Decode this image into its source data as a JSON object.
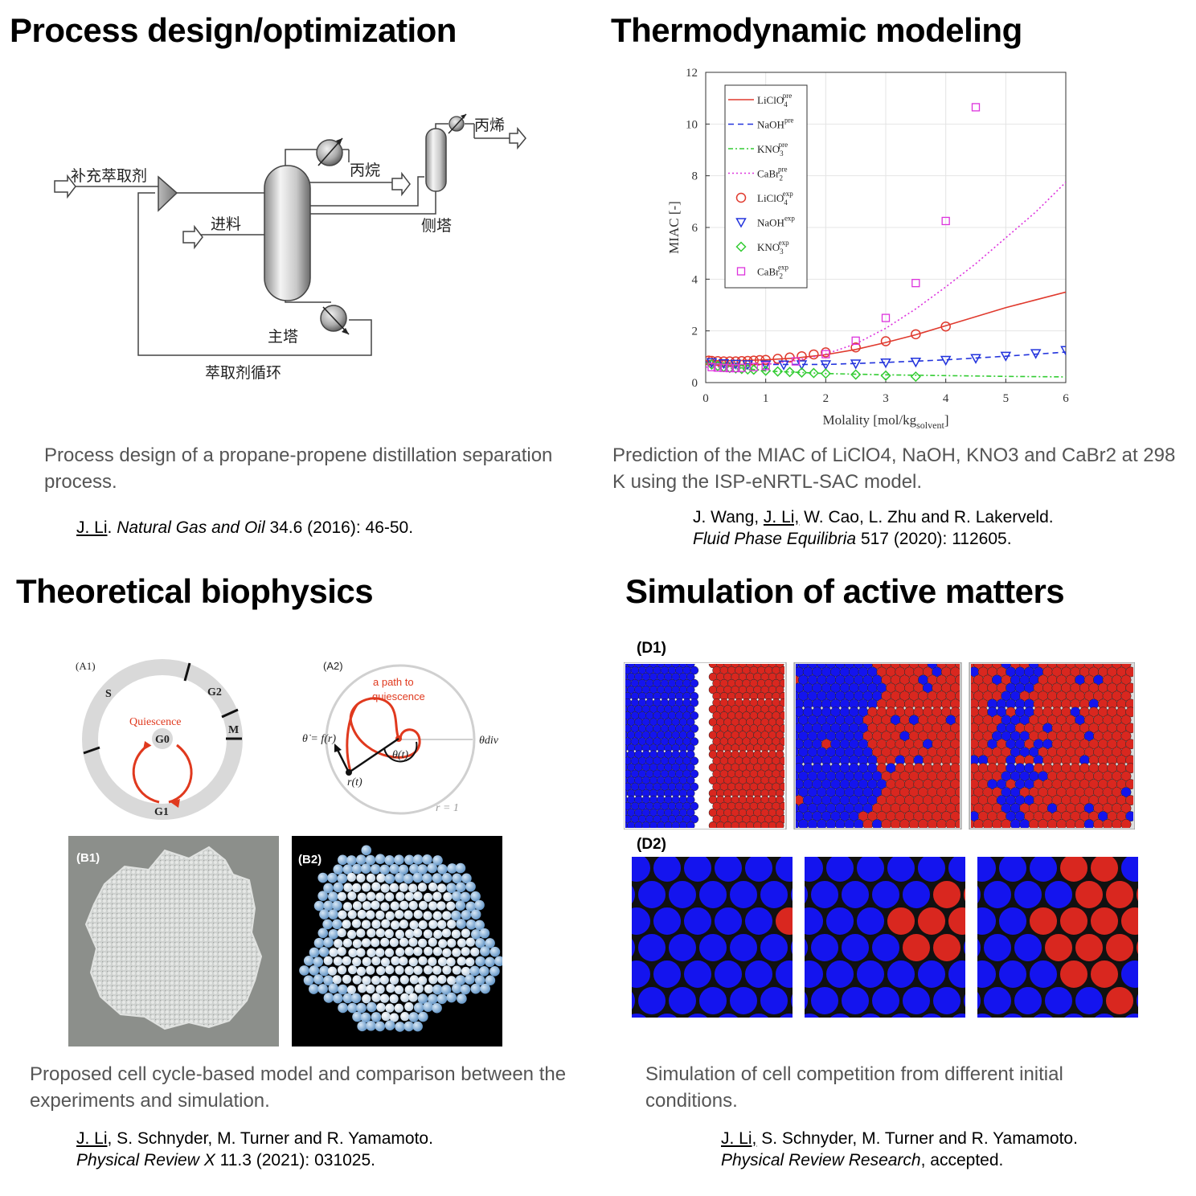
{
  "sections": {
    "process": {
      "title": "Process design/optimization",
      "caption": "Process design of a propane-propene distillation separation process.",
      "ref_author": "J. Li",
      "ref_journal": "Natural Gas and Oil",
      "ref_rest": " 34.6 (2016): 46-50.",
      "diagram": {
        "makeup_solvent": "补充萃取剂",
        "feed": "进料",
        "main_column": "主塔",
        "propane": "丙烷",
        "side_column": "侧塔",
        "propene": "丙烯",
        "solvent_recycle": "萃取剂循环"
      }
    },
    "thermo": {
      "title": "Thermodynamic modeling",
      "caption": "Prediction of the MIAC of LiClO4, NaOH, KNO3 and CaBr2 at 298 K using the ISP-eNRTL-SAC model.",
      "ref_line1_a": "J. Wang, ",
      "ref_line1_author": "J. Li,",
      "ref_line1_b": " W. Cao, L. Zhu and R. Lakerveld.",
      "ref_journal": "Fluid Phase Equilibria",
      "ref_rest": " 517 (2020): 112605."
    },
    "biophys": {
      "title": "Theoretical biophysics",
      "caption": "Proposed cell cycle-based model and comparison between the experiments and simulation.",
      "ref_author": "J. Li",
      "ref_line1_rest": ", S. Schnyder, M. Turner and R. Yamamoto.",
      "ref_journal": "Physical Review X",
      "ref_rest": " 11.3 (2021): 031025.",
      "a1": {
        "label": "(A1)",
        "s": "S",
        "g2": "G2",
        "m": "M",
        "quiescence": "Quiescence",
        "g0": "G0",
        "g1": "G1"
      },
      "a2": {
        "label": "(A2)",
        "path": [
          "a path to",
          "quiescence"
        ],
        "theta_dot": "θ̇ = f(r)",
        "theta_t": "θ(t)",
        "r_t": "r(t)",
        "theta_div": "θdiv",
        "r1": "r = 1"
      },
      "b1_label": "(B1)",
      "b2_label": "(B2)"
    },
    "active": {
      "title": "Simulation of active matters",
      "caption": "Simulation of cell competition from different initial conditions.",
      "ref_author": "J. Li,",
      "ref_line1_rest": " S. Schnyder, M. Turner and R. Yamamoto.",
      "ref_journal": "Physical Review Research",
      "ref_rest": ", accepted.",
      "d1_label": "(D1)",
      "d2_label": "(D2)"
    }
  },
  "chart_data": {
    "type": "line",
    "xlabel": "Molality [mol/kg",
    "xlabel_sub": "solvent",
    "xlabel_end": "]",
    "ylabel": "MIAC [-]",
    "xlim": [
      0,
      6
    ],
    "ylim": [
      0,
      12
    ],
    "xticks": [
      0,
      1,
      2,
      3,
      4,
      5,
      6
    ],
    "yticks": [
      0,
      2,
      4,
      6,
      8,
      10,
      12
    ],
    "grid": true,
    "legend_position": "top-left",
    "series": [
      {
        "name": "LiClO4 pre",
        "kind": "line",
        "style": "solid",
        "color": "#e03a2e",
        "x": [
          0,
          0.5,
          1,
          1.5,
          2,
          2.5,
          3,
          3.5,
          4,
          4.5,
          5,
          5.5,
          6
        ],
        "y": [
          0.85,
          0.85,
          0.88,
          0.95,
          1.08,
          1.28,
          1.55,
          1.85,
          2.2,
          2.55,
          2.9,
          3.2,
          3.5
        ]
      },
      {
        "name": "NaOH pre",
        "kind": "line",
        "style": "dashed",
        "color": "#2233dd",
        "x": [
          0,
          1,
          2,
          3,
          4,
          5,
          6
        ],
        "y": [
          0.8,
          0.7,
          0.7,
          0.78,
          0.88,
          1.02,
          1.18
        ]
      },
      {
        "name": "KNO3 pre",
        "kind": "line",
        "style": "dashdot",
        "color": "#33cc33",
        "x": [
          0,
          1,
          2,
          3,
          4,
          5,
          6
        ],
        "y": [
          0.75,
          0.45,
          0.35,
          0.3,
          0.27,
          0.24,
          0.22
        ]
      },
      {
        "name": "CaBr2 pre",
        "kind": "line",
        "style": "dotted",
        "color": "#dd33dd",
        "x": [
          0,
          0.5,
          1,
          1.5,
          2,
          2.5,
          3,
          3.5,
          4,
          4.5,
          5,
          5.5,
          6
        ],
        "y": [
          0.6,
          0.62,
          0.7,
          0.85,
          1.1,
          1.5,
          2.1,
          2.85,
          3.7,
          4.6,
          5.6,
          6.6,
          7.75
        ]
      },
      {
        "name": "LiClO4 exp",
        "kind": "scatter",
        "marker": "circle",
        "color": "#e03a2e",
        "x": [
          0.05,
          0.1,
          0.2,
          0.3,
          0.4,
          0.5,
          0.6,
          0.7,
          0.8,
          0.9,
          1.0,
          1.2,
          1.4,
          1.6,
          1.8,
          2.0,
          2.5,
          3.0,
          3.5,
          4.0
        ],
        "y": [
          0.85,
          0.84,
          0.83,
          0.82,
          0.82,
          0.82,
          0.83,
          0.84,
          0.85,
          0.87,
          0.88,
          0.92,
          0.97,
          1.02,
          1.09,
          1.17,
          1.36,
          1.6,
          1.87,
          2.17
        ]
      },
      {
        "name": "NaOH exp",
        "kind": "scatter",
        "marker": "triangle-down",
        "color": "#2233dd",
        "x": [
          0.1,
          0.3,
          0.5,
          0.7,
          1.0,
          1.3,
          1.6,
          2.0,
          2.5,
          3.0,
          3.5,
          4.0,
          4.5,
          5.0,
          5.5,
          6.0
        ],
        "y": [
          0.78,
          0.74,
          0.72,
          0.7,
          0.69,
          0.69,
          0.7,
          0.7,
          0.73,
          0.77,
          0.8,
          0.87,
          0.94,
          1.03,
          1.13,
          1.25
        ]
      },
      {
        "name": "KNO3 exp",
        "kind": "scatter",
        "marker": "diamond",
        "color": "#33cc33",
        "x": [
          0.1,
          0.2,
          0.3,
          0.4,
          0.5,
          0.6,
          0.7,
          0.8,
          1.0,
          1.2,
          1.4,
          1.6,
          1.8,
          2.0,
          2.5,
          3.0,
          3.5
        ],
        "y": [
          0.7,
          0.64,
          0.6,
          0.57,
          0.55,
          0.53,
          0.51,
          0.5,
          0.46,
          0.43,
          0.41,
          0.39,
          0.37,
          0.35,
          0.31,
          0.27,
          0.23
        ]
      },
      {
        "name": "CaBr2 exp",
        "kind": "scatter",
        "marker": "square",
        "color": "#dd33dd",
        "x": [
          0.1,
          0.2,
          0.3,
          0.4,
          0.5,
          0.6,
          0.8,
          1.0,
          1.5,
          2.0,
          2.5,
          3.0,
          3.5,
          4.0,
          4.5
        ],
        "y": [
          0.6,
          0.58,
          0.57,
          0.56,
          0.56,
          0.57,
          0.6,
          0.64,
          0.82,
          1.1,
          1.62,
          2.5,
          3.85,
          6.25,
          10.65
        ]
      }
    ],
    "legend": [
      {
        "base": "LiClO",
        "sub": "4",
        "sup": "pre",
        "series": 0
      },
      {
        "base": "NaOH",
        "sub": "",
        "sup": "pre",
        "series": 1
      },
      {
        "base": "KNO",
        "sub": "3",
        "sup": "pre",
        "series": 2
      },
      {
        "base": "CaBr",
        "sub": "2",
        "sup": "pre",
        "series": 3
      },
      {
        "base": "LiClO",
        "sub": "4",
        "sup": "exp",
        "series": 4
      },
      {
        "base": "NaOH",
        "sub": "",
        "sup": "exp",
        "series": 5
      },
      {
        "base": "KNO",
        "sub": "3",
        "sup": "exp",
        "series": 6
      },
      {
        "base": "CaBr",
        "sub": "2",
        "sup": "exp",
        "series": 7
      }
    ]
  },
  "colors": {
    "red_cell": "#d9271f",
    "blue_cell": "#1414ee",
    "caption_gray": "#555555",
    "quiescence_red": "#e0391e"
  }
}
